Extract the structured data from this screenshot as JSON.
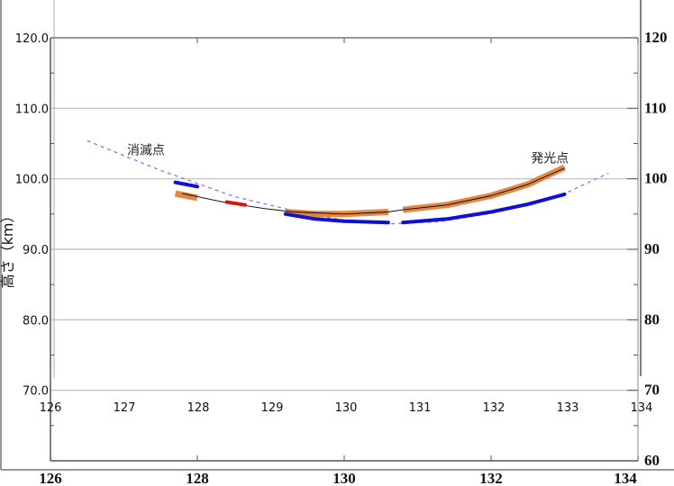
{
  "chart_data": {
    "type": "line",
    "title": "",
    "xlabel": "",
    "ylabel": "高さ（km）",
    "xlim": [
      126,
      134
    ],
    "ylim": [
      60,
      120
    ],
    "grid": true,
    "outer_x_ticks": [
      "126",
      "128",
      "130",
      "132",
      "134"
    ],
    "outer_y_ticks": [
      "120",
      "110",
      "100",
      "90",
      "80",
      "70",
      "60"
    ],
    "inner_x_ticks": [
      "126",
      "127",
      "128",
      "129",
      "130",
      "131",
      "132",
      "133",
      "134"
    ],
    "inner_y_ticks": [
      "120.0",
      "110.0",
      "100.0",
      "90.0",
      "80.0",
      "70.0"
    ],
    "annotations": [
      {
        "text": "消滅点",
        "x": 127.3,
        "y": 103.5
      },
      {
        "text": "発光点",
        "x": 132.8,
        "y": 102.3
      }
    ],
    "series": [
      {
        "style": "dashed",
        "color": "#a070e0",
        "points": [
          [
            126.5,
            105.4
          ],
          [
            127.5,
            101.2
          ],
          [
            128.5,
            97.5
          ],
          [
            129.5,
            95.0
          ],
          [
            130.2,
            93.8
          ],
          [
            130.6,
            93.6
          ],
          [
            131.3,
            93.9
          ],
          [
            132.0,
            95.1
          ],
          [
            133.0,
            97.9
          ],
          [
            133.6,
            100.8
          ]
        ]
      },
      {
        "style": "band",
        "color": "#e07a30",
        "points": [
          [
            127.7,
            97.9
          ],
          [
            128.0,
            97.3
          ]
        ]
      },
      {
        "style": "band",
        "color": "#e07a30",
        "points": [
          [
            129.2,
            95.3
          ],
          [
            129.6,
            95.0
          ],
          [
            130.0,
            95.0
          ],
          [
            130.6,
            95.3
          ]
        ]
      },
      {
        "style": "band",
        "color": "#e07a30",
        "points": [
          [
            130.8,
            95.6
          ],
          [
            131.4,
            96.3
          ],
          [
            132.0,
            97.6
          ],
          [
            132.5,
            99.2
          ],
          [
            133.0,
            101.6
          ]
        ]
      },
      {
        "style": "thin",
        "color": "#000000",
        "points": [
          [
            127.8,
            97.9
          ],
          [
            128.4,
            96.6
          ],
          [
            128.9,
            95.8
          ],
          [
            129.3,
            95.3
          ],
          [
            130.0,
            95.0
          ],
          [
            130.6,
            95.3
          ],
          [
            130.8,
            95.6
          ],
          [
            131.4,
            96.3
          ],
          [
            132.0,
            97.6
          ],
          [
            132.5,
            99.2
          ],
          [
            133.0,
            101.5
          ]
        ]
      },
      {
        "style": "thick",
        "color": "#1010d0",
        "points": [
          [
            127.7,
            99.5
          ],
          [
            128.0,
            98.9
          ]
        ]
      },
      {
        "style": "thick",
        "color": "#1010d0",
        "points": [
          [
            129.2,
            95.0
          ],
          [
            129.6,
            94.3
          ],
          [
            130.0,
            94.0
          ],
          [
            130.6,
            93.8
          ]
        ]
      },
      {
        "style": "thick",
        "color": "#1010d0",
        "points": [
          [
            130.8,
            93.8
          ],
          [
            131.4,
            94.3
          ],
          [
            132.0,
            95.3
          ],
          [
            132.5,
            96.4
          ],
          [
            133.0,
            97.8
          ]
        ]
      },
      {
        "style": "thick",
        "color": "#e01010",
        "points": [
          [
            128.4,
            96.7
          ],
          [
            128.65,
            96.3
          ]
        ]
      }
    ]
  }
}
